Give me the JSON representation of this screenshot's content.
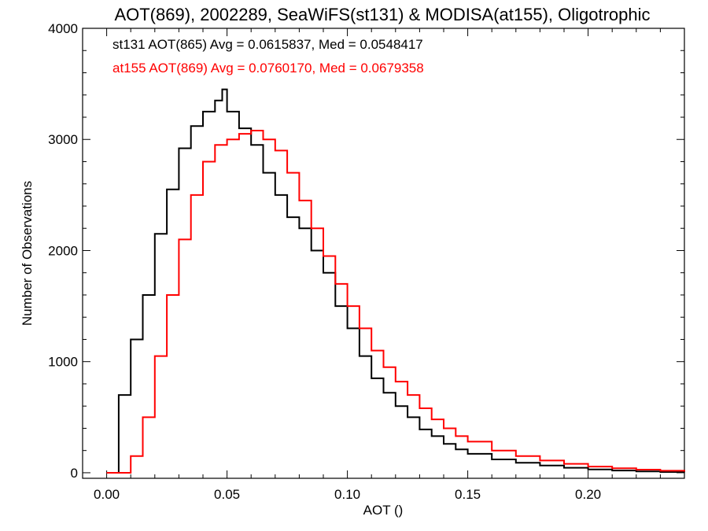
{
  "chart_data": {
    "type": "line",
    "title": "AOT(869), 2002289, SeaWiFS(st131) & MODISA(at155), Oligotrophic",
    "xlabel": "AOT ()",
    "ylabel": "Number of Observations",
    "xlim": [
      -0.01,
      0.24
    ],
    "ylim": [
      -50,
      4000
    ],
    "x_ticks": [
      0.0,
      0.05,
      0.1,
      0.15,
      0.2
    ],
    "x_tick_labels": [
      "0.00",
      "0.05",
      "0.10",
      "0.15",
      "0.20"
    ],
    "y_ticks": [
      0,
      1000,
      2000,
      3000,
      4000
    ],
    "y_tick_labels": [
      "0",
      "1000",
      "2000",
      "3000",
      "4000"
    ],
    "legend": [
      {
        "text": "st131 AOT(865) Avg = 0.0615837, Med = 0.0548417",
        "color": "#000000"
      },
      {
        "text": "at155 AOT(869) Avg = 0.0760170, Med = 0.0679358",
        "color": "#ff0000"
      }
    ],
    "series": [
      {
        "color": "#000000",
        "x": [
          0.0,
          0.005,
          0.01,
          0.015,
          0.02,
          0.025,
          0.03,
          0.035,
          0.04,
          0.045,
          0.048,
          0.05,
          0.055,
          0.06,
          0.065,
          0.07,
          0.075,
          0.08,
          0.085,
          0.09,
          0.095,
          0.1,
          0.105,
          0.11,
          0.115,
          0.12,
          0.125,
          0.13,
          0.135,
          0.14,
          0.145,
          0.15,
          0.16,
          0.17,
          0.18,
          0.19,
          0.2,
          0.21,
          0.22,
          0.23,
          0.24
        ],
        "values": [
          0,
          700,
          1200,
          1600,
          2150,
          2550,
          2920,
          3120,
          3250,
          3350,
          3450,
          3250,
          3100,
          2950,
          2700,
          2500,
          2300,
          2200,
          2000,
          1800,
          1500,
          1300,
          1050,
          850,
          720,
          600,
          500,
          390,
          330,
          260,
          210,
          170,
          120,
          90,
          65,
          45,
          30,
          20,
          12,
          7,
          5
        ]
      },
      {
        "color": "#ff0000",
        "x": [
          0.0,
          0.005,
          0.01,
          0.015,
          0.02,
          0.025,
          0.03,
          0.035,
          0.04,
          0.045,
          0.05,
          0.055,
          0.06,
          0.065,
          0.07,
          0.075,
          0.08,
          0.085,
          0.09,
          0.095,
          0.1,
          0.105,
          0.11,
          0.115,
          0.12,
          0.125,
          0.13,
          0.135,
          0.14,
          0.145,
          0.15,
          0.16,
          0.17,
          0.18,
          0.19,
          0.2,
          0.21,
          0.22,
          0.23,
          0.24
        ],
        "values": [
          0,
          0,
          150,
          500,
          1050,
          1600,
          2100,
          2500,
          2800,
          2950,
          3000,
          3050,
          3080,
          3000,
          2900,
          2700,
          2450,
          2200,
          1950,
          1700,
          1500,
          1300,
          1100,
          950,
          820,
          700,
          580,
          480,
          400,
          330,
          280,
          200,
          150,
          110,
          80,
          55,
          40,
          28,
          18,
          10
        ]
      }
    ]
  }
}
